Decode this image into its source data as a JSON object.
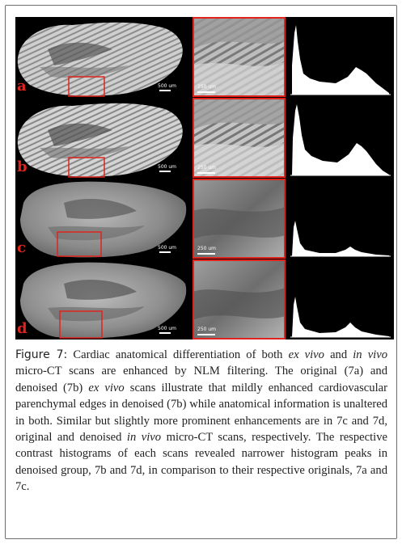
{
  "panels": [
    {
      "letter": "a",
      "scale_main": "500 um",
      "scale_zoom": "250 um"
    },
    {
      "letter": "b",
      "scale_main": "500 um",
      "scale_zoom": "250 um"
    },
    {
      "letter": "c",
      "scale_main": "500 um",
      "scale_zoom": "250 um"
    },
    {
      "letter": "d",
      "scale_main": "500 um",
      "scale_zoom": "250 um"
    }
  ],
  "caption": {
    "label": "Figure 7:",
    "p1": " Cardiac anatomical differentiation of both ",
    "i1": "ex vivo",
    "p2": " and ",
    "i2": "in vivo",
    "p3": " micro-CT scans are enhanced by NLM filtering. The original (7a) and denoised (7b) ",
    "i3": "ex vivo",
    "p4": " scans illustrate that mildly enhanced cardiovascular parenchymal edges in denoised (7b) while anatomical information is unaltered in both. Similar but slightly more prominent enhancements are in 7c and 7d, original and denoised ",
    "i4": "in vivo",
    "p5": " micro-CT scans, respectively. The respective contrast histograms of each scans revealed narrower histogram peaks in denoised group, 7b and 7d, in comparison to their respective originals, 7a and 7c."
  },
  "colors": {
    "highlight_box": "#e0231c",
    "background": "#000000"
  }
}
